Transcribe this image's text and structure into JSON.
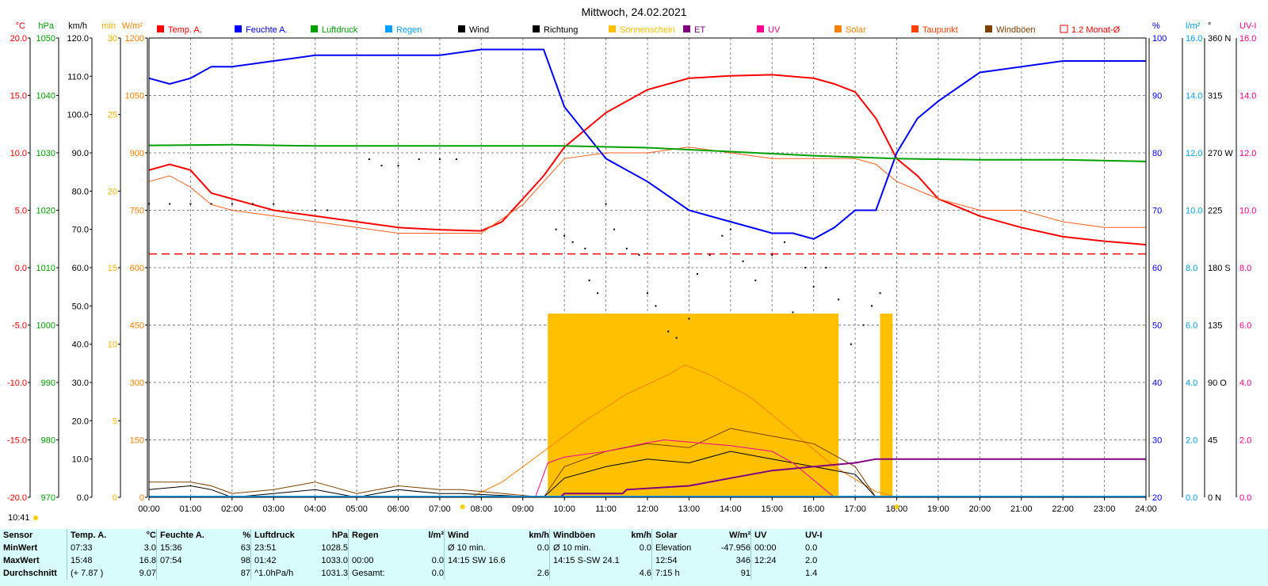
{
  "chart_data": {
    "type": "line",
    "title": "Mittwoch, 24.02.2021",
    "time_label": "10:41",
    "x_ticks": [
      "00:00",
      "01:00",
      "02:00",
      "03:00",
      "04:00",
      "05:00",
      "06:00",
      "07:00",
      "08:00",
      "09:00",
      "10:00",
      "11:00",
      "12:00",
      "13:00",
      "14:00",
      "15:00",
      "16:00",
      "17:00",
      "18:00",
      "19:00",
      "20:00",
      "21:00",
      "22:00",
      "23:00",
      "24:00"
    ],
    "left_axes": [
      {
        "unit": "°C",
        "color": "#ff0000",
        "ticks": [
          "20.0",
          "15.0",
          "10.0",
          "5.0",
          "0.0",
          "-5.0",
          "-10.0",
          "-15.0",
          "-20.0"
        ]
      },
      {
        "unit": "hPa",
        "color": "#00a000",
        "ticks": [
          "1050",
          "1040",
          "1030",
          "1020",
          "1010",
          "1000",
          "990",
          "980",
          "970"
        ]
      },
      {
        "unit": "km/h",
        "color": "#000000",
        "ticks": [
          "120.0",
          "110.0",
          "100.0",
          "90.0",
          "80.0",
          "70.0",
          "60.0",
          "50.0",
          "40.0",
          "30.0",
          "20.0",
          "10.0",
          "0.0"
        ]
      },
      {
        "unit": "min",
        "color": "#ffb000",
        "ticks": [
          "30",
          "25",
          "20",
          "15",
          "10",
          "5",
          "0"
        ]
      },
      {
        "unit": "W/m²",
        "color": "#ff8000",
        "ticks": [
          "1200",
          "1050",
          "900",
          "750",
          "600",
          "450",
          "300",
          "150",
          "0"
        ]
      }
    ],
    "right_axes": [
      {
        "unit": "%",
        "color": "#0000ff",
        "ticks": [
          "100",
          "90",
          "80",
          "70",
          "60",
          "50",
          "40",
          "30",
          "20"
        ]
      },
      {
        "unit": "l/m²",
        "color": "#00a0ff",
        "ticks": [
          "16.0",
          "14.0",
          "12.0",
          "10.0",
          "8.0",
          "6.0",
          "4.0",
          "2.0",
          "0.0"
        ]
      },
      {
        "unit": "°",
        "color": "#000000",
        "ticks": [
          "360 N",
          "315",
          "270 W",
          "225",
          "180 S",
          "135",
          "90 O",
          "45",
          "0 N"
        ]
      },
      {
        "unit": "UV-I",
        "color": "#ff0090",
        "ticks": [
          "16.0",
          "14.0",
          "12.0",
          "10.0",
          "8.0",
          "6.0",
          "4.0",
          "2.0",
          "0.0"
        ]
      }
    ],
    "legend": [
      {
        "name": "Temp. A.",
        "color": "#ff0000"
      },
      {
        "name": "Feuchte A.",
        "color": "#0000ff"
      },
      {
        "name": "Luftdruck",
        "color": "#00a000"
      },
      {
        "name": "Regen",
        "color": "#00a0ff"
      },
      {
        "name": "Wind",
        "color": "#000000"
      },
      {
        "name": "Richtung",
        "color": "#000000"
      },
      {
        "name": "Sonnenschein",
        "color": "#ffc000"
      },
      {
        "name": "ET",
        "color": "#800080"
      },
      {
        "name": "UV",
        "color": "#ff0090"
      },
      {
        "name": "Solar",
        "color": "#ff8000"
      },
      {
        "name": "Taupunkt",
        "color": "#ff4000"
      },
      {
        "name": "Windböen",
        "color": "#804000"
      },
      {
        "name": "1.2 Monat-Ø",
        "color": "#ff0000"
      }
    ],
    "series": [
      {
        "name": "Temp. A.",
        "axis": "°C",
        "x": [
          0,
          0.5,
          1.0,
          1.5,
          2.0,
          3.0,
          4.0,
          5.0,
          6.0,
          7.0,
          8.0,
          8.5,
          9.0,
          9.5,
          10.0,
          11.0,
          12.0,
          13.0,
          14.0,
          15.0,
          16.0,
          16.5,
          17.0,
          17.5,
          18.0,
          18.5,
          19.0,
          20.0,
          21.0,
          22.0,
          23.0,
          24.0
        ],
        "y": [
          8.5,
          9.0,
          8.5,
          6.5,
          6.0,
          5.0,
          4.5,
          4.0,
          3.5,
          3.3,
          3.2,
          4.0,
          6.0,
          8.0,
          10.5,
          13.5,
          15.5,
          16.5,
          16.7,
          16.8,
          16.5,
          16.0,
          15.3,
          13.0,
          9.5,
          8.0,
          6.0,
          4.5,
          3.5,
          2.7,
          2.3,
          2.0
        ]
      },
      {
        "name": "Taupunkt",
        "axis": "°C",
        "x": [
          0,
          0.5,
          1.0,
          1.5,
          2.0,
          3.0,
          4.0,
          5.0,
          6.0,
          7.0,
          8.0,
          9.0,
          10.0,
          11.0,
          12.0,
          13.0,
          14.0,
          15.0,
          16.0,
          17.0,
          17.5,
          18.0,
          19.0,
          20.0,
          21.0,
          22.0,
          23.0,
          24.0
        ],
        "y": [
          7.5,
          8.0,
          7.0,
          5.5,
          5.0,
          4.5,
          4.0,
          3.5,
          3.0,
          3.0,
          3.0,
          5.5,
          9.5,
          10.0,
          10.0,
          10.5,
          10.0,
          9.5,
          9.5,
          9.5,
          9.0,
          7.5,
          6.0,
          5.0,
          5.0,
          4.0,
          3.5,
          3.5
        ]
      },
      {
        "name": "Feuchte A.",
        "axis": "%",
        "x": [
          0,
          0.5,
          1.0,
          1.5,
          2.0,
          3.0,
          4.0,
          5.0,
          6.0,
          7.0,
          8.0,
          9.0,
          9.5,
          10.0,
          11.0,
          12.0,
          13.0,
          14.0,
          15.0,
          15.5,
          16.0,
          16.5,
          17.0,
          17.5,
          18.0,
          18.5,
          19.0,
          20.0,
          21.0,
          22.0,
          23.0,
          24.0
        ],
        "y": [
          93,
          92,
          93,
          95,
          95,
          96,
          97,
          97,
          97,
          97,
          98,
          98,
          98,
          88,
          79,
          75,
          70,
          68,
          66,
          66,
          65,
          67,
          70,
          70,
          80,
          86,
          89,
          94,
          95,
          96,
          96,
          96
        ]
      },
      {
        "name": "Luftdruck",
        "axis": "hPa",
        "x": [
          0,
          2,
          4,
          6,
          8,
          10,
          12,
          14,
          16,
          18,
          20,
          22,
          24
        ],
        "y": [
          1031.3,
          1031.4,
          1031.2,
          1031.2,
          1031.2,
          1031.2,
          1030.9,
          1030.2,
          1029.5,
          1029.0,
          1028.8,
          1028.8,
          1028.5
        ]
      },
      {
        "name": "Solar",
        "axis": "W/m²",
        "x": [
          7.75,
          8.5,
          9.5,
          10.5,
          11.5,
          12.5,
          12.9,
          13.5,
          14.5,
          15.5,
          16.5,
          17.5,
          18.0
        ],
        "y": [
          0,
          40,
          120,
          200,
          270,
          320,
          346,
          320,
          260,
          170,
          80,
          15,
          0
        ]
      },
      {
        "name": "Wind",
        "axis": "km/h",
        "x": [
          0,
          1,
          1.5,
          2,
          3,
          4,
          5,
          6,
          7,
          7.5,
          9.5,
          10,
          11,
          12,
          13,
          14,
          15,
          16,
          17,
          17.5
        ],
        "y": [
          2,
          3,
          2,
          0,
          1,
          2,
          0,
          2,
          1,
          1,
          0,
          5,
          8,
          10,
          9,
          12,
          10,
          8,
          6,
          0
        ]
      },
      {
        "name": "Windböen",
        "axis": "km/h",
        "x": [
          0,
          1,
          1.5,
          2,
          3,
          4,
          5,
          6,
          7,
          7.5,
          9.5,
          10,
          11,
          12,
          13,
          14,
          15,
          16,
          17,
          17.5
        ],
        "y": [
          4,
          4,
          3,
          1,
          2,
          4,
          1,
          3,
          2,
          2,
          0,
          8,
          12,
          14,
          13,
          18,
          16,
          14,
          8,
          0
        ]
      },
      {
        "name": "UV",
        "axis": "UV-I",
        "x": [
          9.3,
          9.6,
          10,
          11,
          12,
          12.4,
          14,
          15,
          15.5,
          16,
          16.5
        ],
        "y": [
          0,
          1.2,
          1.4,
          1.6,
          1.9,
          2.0,
          1.8,
          1.6,
          1.2,
          0.6,
          0
        ]
      },
      {
        "name": "ET",
        "axis": "km/h",
        "x": [
          9.9,
          10.0,
          11.4,
          11.5,
          13.0,
          14.0,
          15.0,
          16.0,
          17.0,
          17.5,
          24.0
        ],
        "y": [
          0,
          1,
          1,
          2,
          3,
          5,
          7,
          8,
          9,
          10,
          10
        ]
      },
      {
        "name": "1.2 Monat-Ø",
        "axis": "°C",
        "x": [
          0,
          24
        ],
        "y": [
          1.2,
          1.2
        ]
      }
    ],
    "sunshine_bars": [
      {
        "from": 9.6,
        "to": 16.6,
        "minutes": 12
      },
      {
        "from": 17.6,
        "to": 17.9,
        "minutes": 12
      }
    ],
    "wind_direction_deg": [
      [
        0.0,
        230
      ],
      [
        0.5,
        230
      ],
      [
        1.0,
        230
      ],
      [
        1.5,
        230
      ],
      [
        2.0,
        230
      ],
      [
        2.5,
        230
      ],
      [
        3.0,
        230
      ],
      [
        4.0,
        225
      ],
      [
        4.3,
        225
      ],
      [
        5.3,
        265
      ],
      [
        5.6,
        260
      ],
      [
        6.0,
        260
      ],
      [
        6.5,
        265
      ],
      [
        7.0,
        265
      ],
      [
        7.4,
        265
      ],
      [
        9.8,
        210
      ],
      [
        10.0,
        205
      ],
      [
        10.2,
        200
      ],
      [
        10.5,
        195
      ],
      [
        10.6,
        170
      ],
      [
        10.8,
        160
      ],
      [
        11.0,
        230
      ],
      [
        11.2,
        210
      ],
      [
        11.5,
        195
      ],
      [
        11.8,
        190
      ],
      [
        12.0,
        160
      ],
      [
        12.2,
        150
      ],
      [
        12.5,
        130
      ],
      [
        12.7,
        125
      ],
      [
        13.0,
        140
      ],
      [
        13.2,
        175
      ],
      [
        13.5,
        190
      ],
      [
        13.8,
        205
      ],
      [
        14.0,
        210
      ],
      [
        14.3,
        185
      ],
      [
        14.6,
        170
      ],
      [
        15.0,
        190
      ],
      [
        15.3,
        200
      ],
      [
        15.5,
        145
      ],
      [
        15.8,
        180
      ],
      [
        16.0,
        165
      ],
      [
        16.3,
        180
      ],
      [
        16.6,
        155
      ],
      [
        16.9,
        120
      ],
      [
        17.2,
        135
      ],
      [
        17.4,
        150
      ],
      [
        17.6,
        160
      ]
    ]
  },
  "stats": {
    "headers": [
      {
        "label": "Sensor",
        "unit": ""
      },
      {
        "label": "Temp. A.",
        "unit": "°C"
      },
      {
        "label": "Feuchte A.",
        "unit": "%"
      },
      {
        "label": "Luftdruck",
        "unit": "hPa"
      },
      {
        "label": "Regen",
        "unit": "l/m²"
      },
      {
        "label": "Wind",
        "unit": "km/h"
      },
      {
        "label": "Windböen",
        "unit": "km/h"
      },
      {
        "label": "Solar",
        "unit": "W/m²"
      },
      {
        "label": "UV",
        "unit": "UV-I"
      }
    ],
    "rows": [
      {
        "label": "MinWert",
        "cells": [
          [
            "07:33",
            "3.0"
          ],
          [
            "15:36",
            "63"
          ],
          [
            "23:51",
            "1028.5"
          ],
          [
            "",
            ""
          ],
          [
            "Ø 10 min.",
            "0.0"
          ],
          [
            "Ø 10 min.",
            "0.0"
          ],
          [
            "Elevation",
            "-47.956"
          ],
          [
            "00:00",
            "0.0"
          ]
        ]
      },
      {
        "label": "MaxWert",
        "cells": [
          [
            "15:48",
            "16.8"
          ],
          [
            "07:54",
            "98"
          ],
          [
            "01:42",
            "1033.0"
          ],
          [
            "00:00",
            "0.0"
          ],
          [
            "14:15   SW 16.6",
            ""
          ],
          [
            "14:15   S-SW 24.1",
            ""
          ],
          [
            "12:54",
            "346"
          ],
          [
            "12:24",
            "2.0"
          ]
        ]
      },
      {
        "label": "Durchschnitt",
        "cells": [
          [
            "(+ 7.87 )",
            "9.07"
          ],
          [
            "",
            "87"
          ],
          [
            "^1.0hPa/h",
            "1031.3"
          ],
          [
            "Gesamt:",
            "0.0"
          ],
          [
            "",
            "2.6"
          ],
          [
            "",
            "4.6"
          ],
          [
            "7:15 h",
            "91"
          ],
          [
            "",
            "1.4"
          ]
        ]
      }
    ]
  }
}
